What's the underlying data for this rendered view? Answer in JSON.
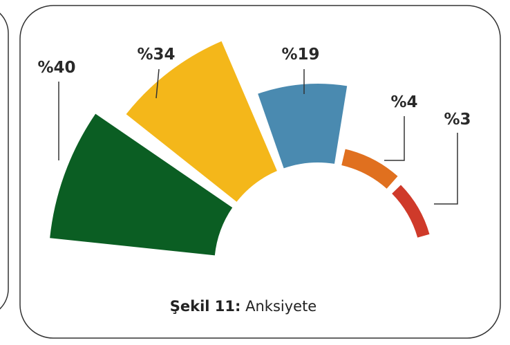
{
  "chart_data": {
    "type": "polar",
    "figure_label": "Şekil 11:",
    "title": "Anksiyete",
    "values": [
      40,
      34,
      19,
      4,
      3
    ],
    "value_labels": [
      "%40",
      "%34",
      "%19",
      "%4",
      "%3"
    ],
    "colors": [
      "#0b5e23",
      "#f4b71a",
      "#4a8ab0",
      "#e0701f",
      "#cf3a2a"
    ]
  }
}
